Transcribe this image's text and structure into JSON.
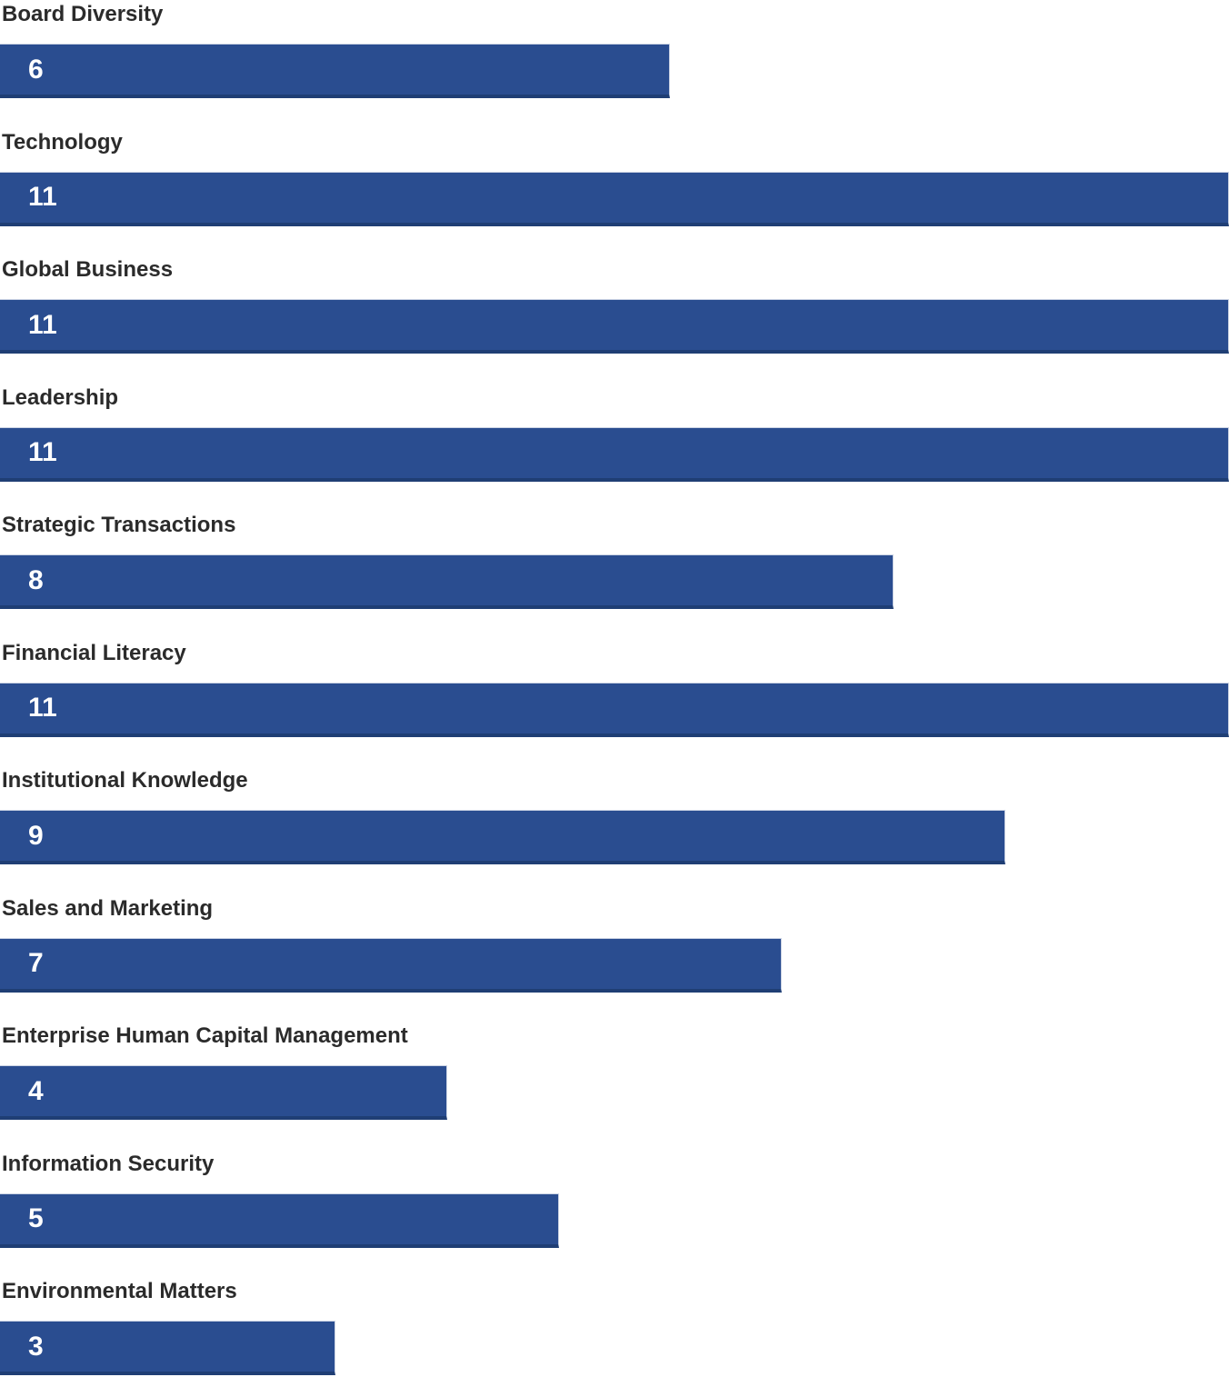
{
  "chart_data": {
    "type": "bar",
    "orientation": "horizontal",
    "categories": [
      "Board Diversity",
      "Technology",
      "Global Business",
      "Leadership",
      "Strategic Transactions",
      "Financial Literacy",
      "Institutional Knowledge",
      "Sales and Marketing",
      "Enterprise Human Capital Management",
      "Information Security",
      "Environmental Matters"
    ],
    "values": [
      6,
      11,
      11,
      11,
      8,
      11,
      9,
      7,
      4,
      5,
      3
    ],
    "xlim": [
      0,
      11
    ],
    "grid": false,
    "legend": false,
    "value_labels_inside_bars": true,
    "bar_color": "#2a4d90",
    "bar_edge_dark_color": "#1f3e74",
    "bar_edge_light_color": "#ccd4e4",
    "category_label_color": "#2b2b2b",
    "value_label_color": "#ffffff",
    "background_color": "#ffffff"
  }
}
